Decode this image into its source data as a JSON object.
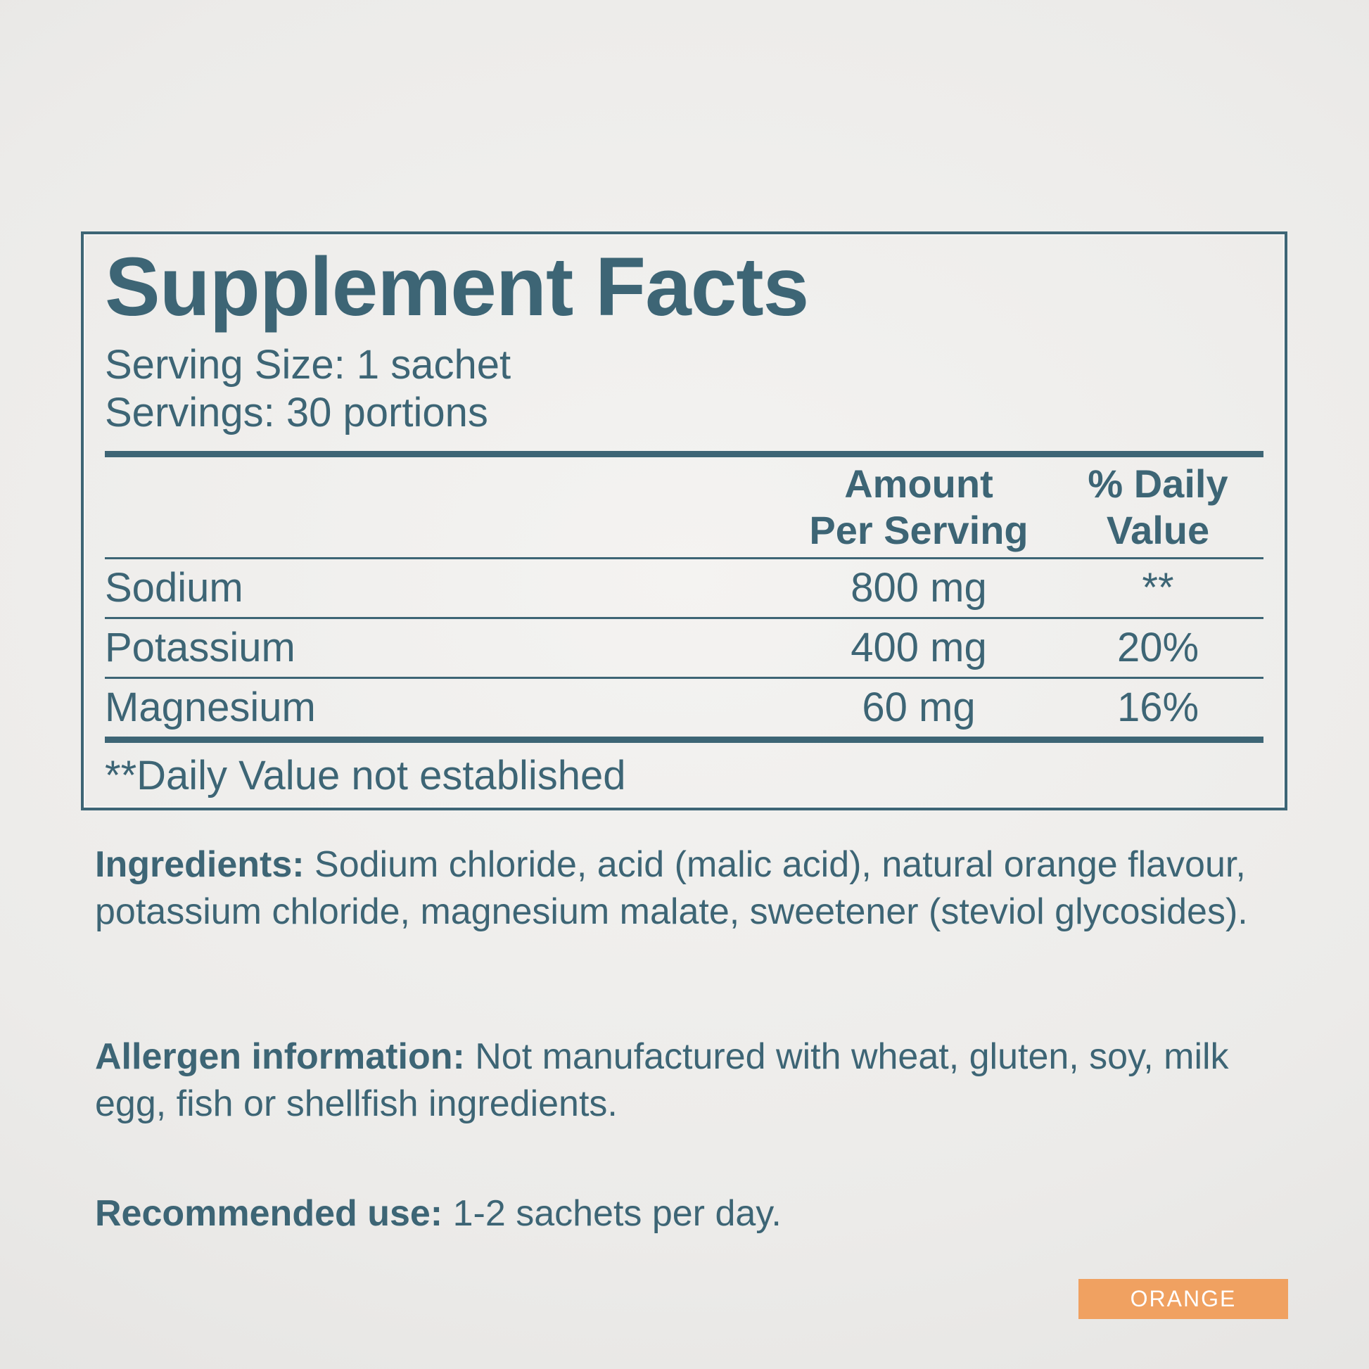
{
  "label": {
    "title": "Supplement Facts",
    "serving_size": "Serving Size: 1 sachet",
    "servings": "Servings: 30 portions",
    "columns": {
      "amount_line1": "Amount",
      "amount_line2": "Per Serving",
      "dv_line1": "% Daily",
      "dv_line2": "Value"
    },
    "rows": [
      {
        "name": "Sodium",
        "amount": "800 mg",
        "daily_value": "**"
      },
      {
        "name": "Potassium",
        "amount": "400 mg",
        "daily_value": "20%"
      },
      {
        "name": "Magnesium",
        "amount": "60 mg",
        "daily_value": "16%"
      }
    ],
    "footnote": "**Daily Value not established"
  },
  "paragraphs": {
    "ingredients": {
      "label": "Ingredients:",
      "text": " Sodium chloride, acid (malic acid), natural orange flavour, potassium chloride, magnesium malate, sweetener (steviol glycosides)."
    },
    "allergen": {
      "label": "Allergen information:",
      "text": " Not manufactured with wheat, gluten, soy, milk egg, fish or shellfish ingredients."
    },
    "recommended": {
      "label": "Recommended use:",
      "text": " 1-2 sachets per day."
    }
  },
  "badge": {
    "label": "ORANGE"
  },
  "colors": {
    "teal": "#3d6575",
    "badge_orange": "#f0a161",
    "badge_text": "#ffffff"
  }
}
